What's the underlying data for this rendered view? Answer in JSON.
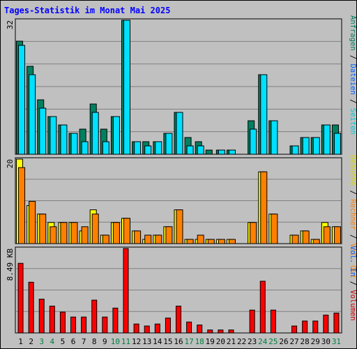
{
  "title": "Tages-Statistik im Monat Mai 2025",
  "colors": {
    "background": "#c0c0c0",
    "anfragen": "#008060",
    "dateien": "#00e0ff",
    "seiten": "#00c8d8",
    "besuche": "#ffff00",
    "rechner": "#ff8000",
    "volumen": "#ff0000",
    "weekend_label": "#008040",
    "weekday_label": "#000000"
  },
  "right_labels": {
    "top": [
      "Anfragen",
      "/",
      "Dateien",
      "/",
      "Seiten"
    ],
    "middle": [
      "Besuche",
      "/",
      "Rechner",
      "/",
      "Vol. Out"
    ],
    "bottom": [
      "Vol. In",
      "/",
      "Volumen"
    ]
  },
  "chart_data": [
    {
      "type": "bar",
      "panel": "top",
      "ymax_label": "32",
      "ylim": [
        0,
        32
      ],
      "categories": [
        "1",
        "2",
        "3",
        "4",
        "5",
        "6",
        "7",
        "8",
        "9",
        "10",
        "11",
        "12",
        "13",
        "14",
        "15",
        "16",
        "17",
        "18",
        "19",
        "20",
        "21",
        "22",
        "23",
        "24",
        "25",
        "26",
        "27",
        "28",
        "29",
        "30",
        "31"
      ],
      "series": [
        {
          "name": "Anfragen",
          "values": [
            27,
            21,
            13,
            9,
            7,
            5,
            6,
            12,
            6,
            9,
            32,
            3,
            3,
            3,
            5,
            10,
            4,
            3,
            1,
            1,
            1,
            0,
            8,
            19,
            8,
            0,
            2,
            4,
            4,
            7,
            7
          ]
        },
        {
          "name": "Dateien",
          "values": [
            26,
            19,
            11,
            9,
            7,
            5,
            3,
            10,
            3,
            9,
            32,
            3,
            2,
            3,
            5,
            10,
            2,
            2,
            0,
            1,
            1,
            0,
            6,
            19,
            8,
            0,
            2,
            4,
            4,
            7,
            5
          ]
        }
      ]
    },
    {
      "type": "bar",
      "panel": "middle",
      "ymax_label": "20",
      "ylim": [
        0,
        20
      ],
      "categories": [
        "1",
        "2",
        "3",
        "4",
        "5",
        "6",
        "7",
        "8",
        "9",
        "10",
        "11",
        "12",
        "13",
        "14",
        "15",
        "16",
        "17",
        "18",
        "19",
        "20",
        "21",
        "22",
        "23",
        "24",
        "25",
        "26",
        "27",
        "28",
        "29",
        "30",
        "31"
      ],
      "series": [
        {
          "name": "Besuche",
          "values": [
            20,
            9,
            7,
            5,
            5,
            5,
            3,
            8,
            2,
            5,
            6,
            3,
            1,
            2,
            4,
            8,
            1,
            1,
            1,
            1,
            1,
            0,
            5,
            17,
            7,
            0,
            2,
            3,
            1,
            5,
            4
          ]
        },
        {
          "name": "Rechner",
          "values": [
            18,
            10,
            7,
            4,
            5,
            5,
            4,
            7,
            2,
            5,
            6,
            3,
            2,
            2,
            4,
            8,
            1,
            2,
            1,
            1,
            1,
            0,
            5,
            17,
            7,
            0,
            2,
            3,
            1,
            4,
            4
          ]
        }
      ]
    },
    {
      "type": "bar",
      "panel": "bottom",
      "ymax_label": "8.49 KB",
      "ylim": [
        0,
        8.49
      ],
      "categories": [
        "1",
        "2",
        "3",
        "4",
        "5",
        "6",
        "7",
        "8",
        "9",
        "10",
        "11",
        "12",
        "13",
        "14",
        "15",
        "16",
        "17",
        "18",
        "19",
        "20",
        "21",
        "22",
        "23",
        "24",
        "25",
        "26",
        "27",
        "28",
        "29",
        "30",
        "31"
      ],
      "series": [
        {
          "name": "Volumen",
          "values": [
            7.0,
            5.1,
            3.4,
            2.7,
            2.1,
            1.6,
            1.6,
            3.3,
            1.6,
            2.5,
            8.49,
            0.9,
            0.7,
            0.9,
            1.5,
            2.7,
            1.1,
            0.8,
            0.3,
            0.3,
            0.3,
            0,
            2.3,
            5.2,
            2.3,
            0,
            0.7,
            1.2,
            1.2,
            1.8,
            2.0
          ]
        }
      ]
    }
  ],
  "x_axis": {
    "labels": [
      "1",
      "2",
      "3",
      "4",
      "5",
      "6",
      "7",
      "8",
      "9",
      "10",
      "11",
      "12",
      "13",
      "14",
      "15",
      "16",
      "17",
      "18",
      "19",
      "20",
      "21",
      "22",
      "23",
      "24",
      "25",
      "26",
      "27",
      "28",
      "29",
      "30",
      "31"
    ],
    "weekend_days": [
      "3",
      "4",
      "10",
      "11",
      "17",
      "18",
      "24",
      "25",
      "31"
    ]
  }
}
